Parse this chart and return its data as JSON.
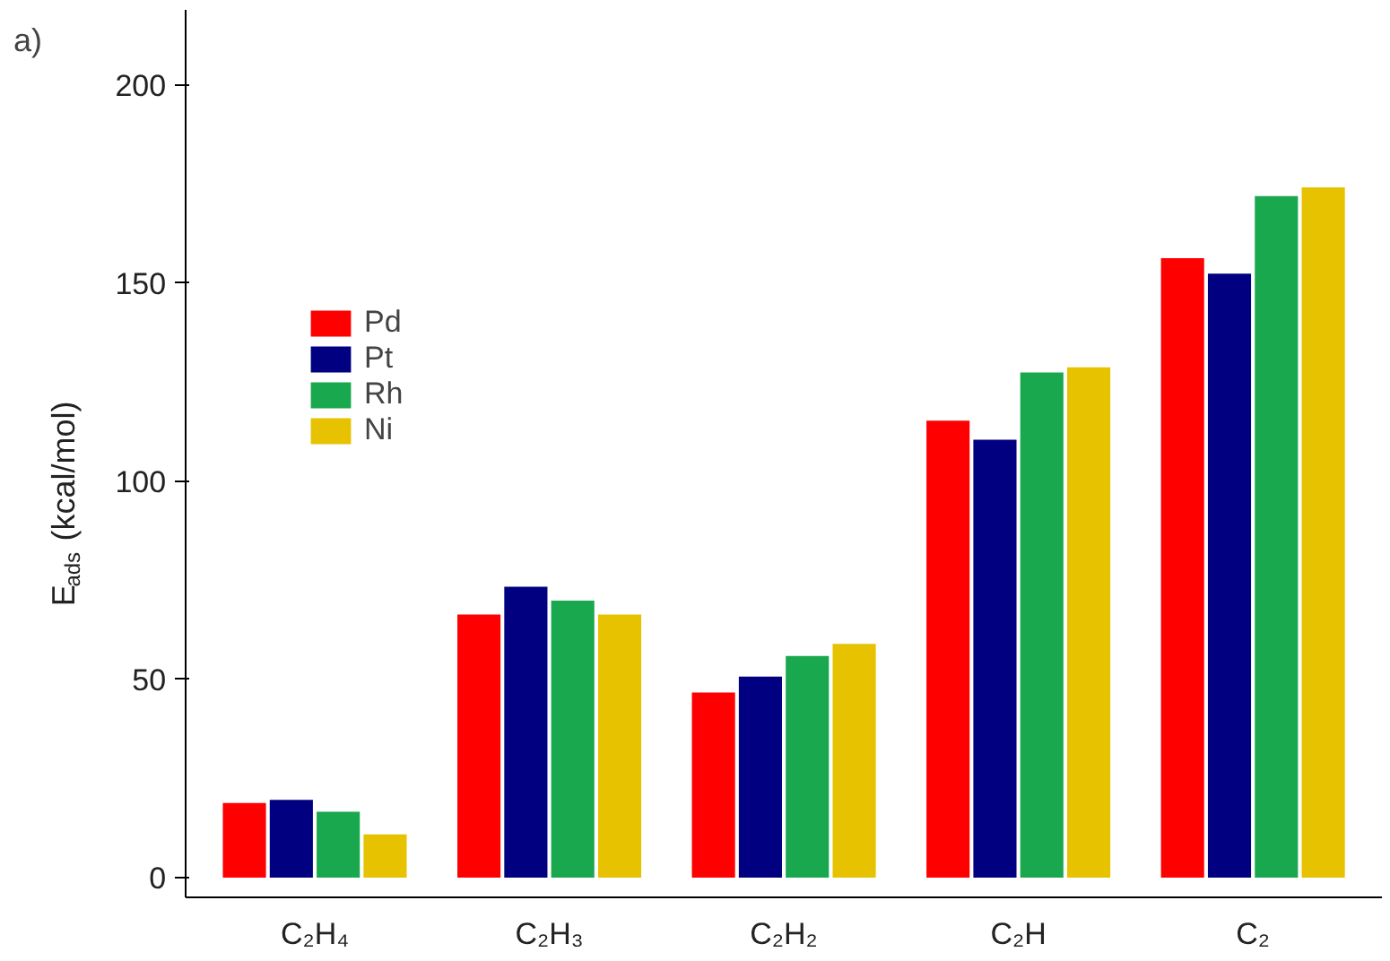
{
  "chart_data": {
    "type": "bar",
    "ylabel": "E$_{ads}$ (kcal/mol)",
    "annotations": [
      "a)"
    ],
    "categories": [
      "C₂H₄",
      "C₂H₃",
      "C₂H₂",
      "C₂H",
      "C₂"
    ],
    "series": [
      {
        "name": "Pd",
        "color": "#ff0000",
        "values": [
          18.8,
          66.4,
          46.7,
          115.3,
          156.3
        ]
      },
      {
        "name": "Pt",
        "color": "#000080",
        "values": [
          19.6,
          73.4,
          50.7,
          110.5,
          152.4
        ]
      },
      {
        "name": "Rh",
        "color": "#1aa84f",
        "values": [
          16.6,
          69.9,
          55.9,
          127.5,
          172.0
        ]
      },
      {
        "name": "Ni",
        "color": "#e6c200",
        "values": [
          10.9,
          66.4,
          59.0,
          128.8,
          174.2
        ]
      }
    ],
    "ylim": [
      -5,
      219
    ],
    "yticks": [
      0,
      50,
      100,
      150,
      200
    ],
    "grid": false,
    "legend": "top left"
  }
}
